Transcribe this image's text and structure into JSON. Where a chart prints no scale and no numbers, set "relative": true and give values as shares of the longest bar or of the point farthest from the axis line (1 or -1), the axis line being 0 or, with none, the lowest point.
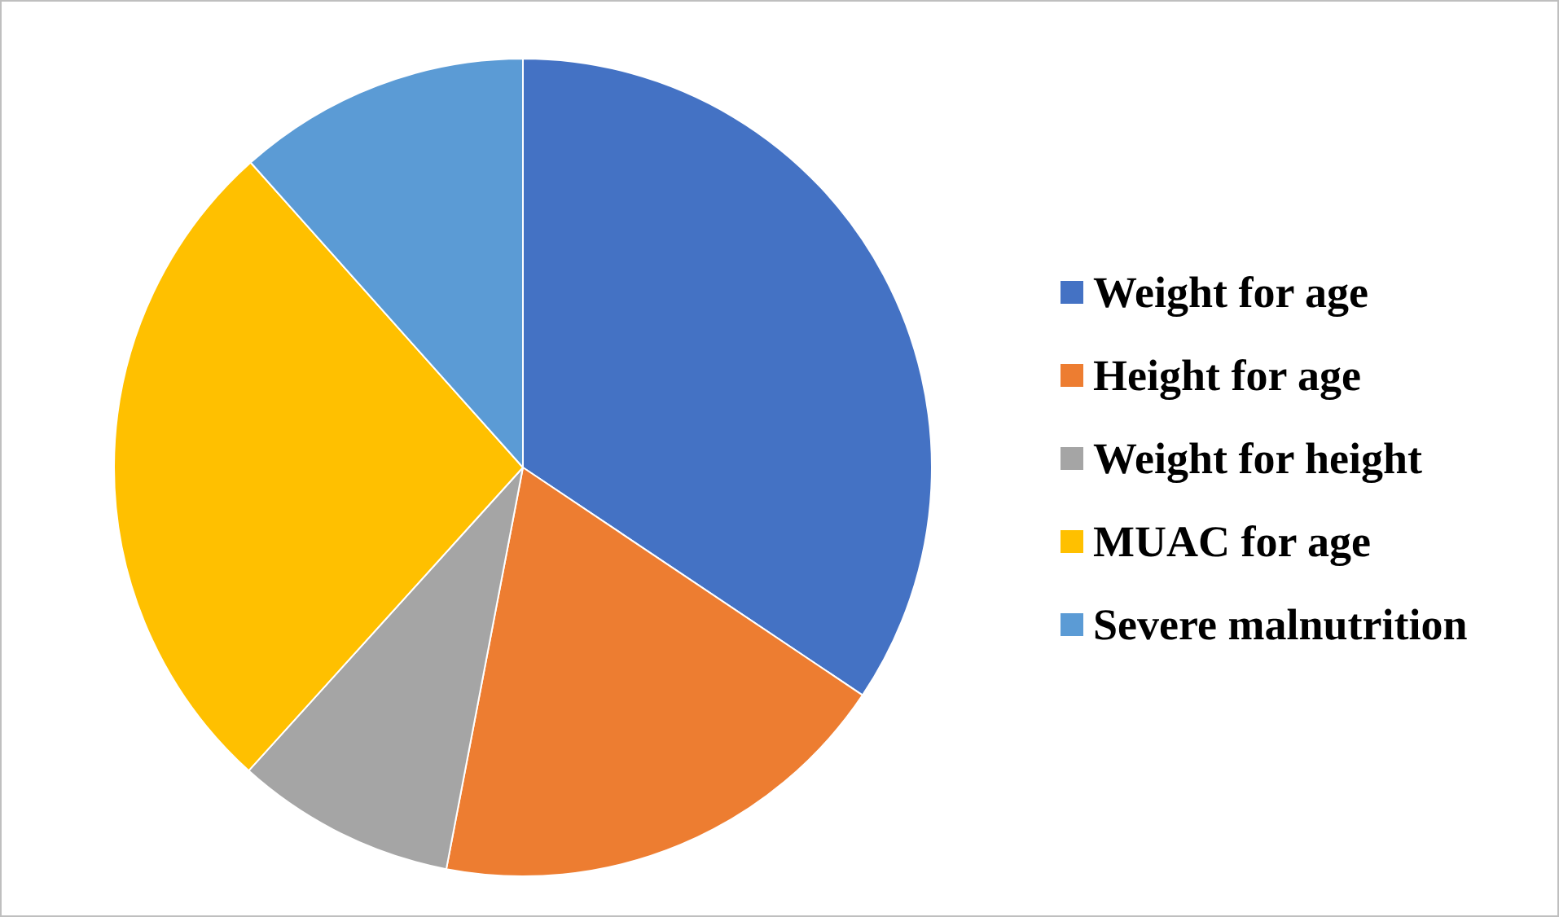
{
  "chart_data": {
    "type": "pie",
    "relative": true,
    "categories": [
      "Weight for age",
      "Height for age",
      "Weight for height",
      "MUAC for age",
      "Severe malnutrition"
    ],
    "values": [
      34.4,
      18.6,
      8.7,
      26.7,
      11.6
    ],
    "colors": [
      "#4472c4",
      "#ed7d31",
      "#a5a5a5",
      "#ffc000",
      "#5b9bd5"
    ],
    "legend": "right"
  }
}
